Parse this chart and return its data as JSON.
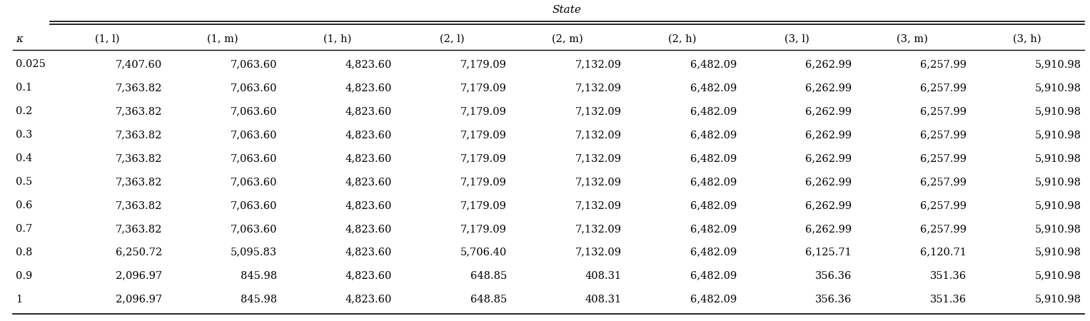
{
  "title": "State",
  "col_headers": [
    "κ",
    "(1, l)",
    "(1, m)",
    "(1, h)",
    "(2, l)",
    "(2, m)",
    "(2, h)",
    "(3, l)",
    "(3, m)",
    "(3, h)"
  ],
  "rows": [
    [
      "0.025",
      "7,407.60",
      "7,063.60",
      "4,823.60",
      "7,179.09",
      "7,132.09",
      "6,482.09",
      "6,262.99",
      "6,257.99",
      "5,910.98"
    ],
    [
      "0.1",
      "7,363.82",
      "7,063.60",
      "4,823.60",
      "7,179.09",
      "7,132.09",
      "6,482.09",
      "6,262.99",
      "6,257.99",
      "5,910.98"
    ],
    [
      "0.2",
      "7,363.82",
      "7,063.60",
      "4,823.60",
      "7,179.09",
      "7,132.09",
      "6,482.09",
      "6,262.99",
      "6,257.99",
      "5,910.98"
    ],
    [
      "0.3",
      "7,363.82",
      "7,063.60",
      "4,823.60",
      "7,179.09",
      "7,132.09",
      "6,482.09",
      "6,262.99",
      "6,257.99",
      "5,910.98"
    ],
    [
      "0.4",
      "7,363.82",
      "7,063.60",
      "4,823.60",
      "7,179.09",
      "7,132.09",
      "6,482.09",
      "6,262.99",
      "6,257.99",
      "5,910.98"
    ],
    [
      "0.5",
      "7,363.82",
      "7,063.60",
      "4,823.60",
      "7,179.09",
      "7,132.09",
      "6,482.09",
      "6,262.99",
      "6,257.99",
      "5,910.98"
    ],
    [
      "0.6",
      "7,363.82",
      "7,063.60",
      "4,823.60",
      "7,179.09",
      "7,132.09",
      "6,482.09",
      "6,262.99",
      "6,257.99",
      "5,910.98"
    ],
    [
      "0.7",
      "7,363.82",
      "7,063.60",
      "4,823.60",
      "7,179.09",
      "7,132.09",
      "6,482.09",
      "6,262.99",
      "6,257.99",
      "5,910.98"
    ],
    [
      "0.8",
      "6,250.72",
      "5,095.83",
      "4,823.60",
      "5,706.40",
      "7,132.09",
      "6,482.09",
      "6,125.71",
      "6,120.71",
      "5,910.98"
    ],
    [
      "0.9",
      "2,096.97",
      "845.98",
      "4,823.60",
      "648.85",
      "408.31",
      "6,482.09",
      "356.36",
      "351.36",
      "5,910.98"
    ],
    [
      "1",
      "2,096.97",
      "845.98",
      "4,823.60",
      "648.85",
      "408.31",
      "6,482.09",
      "356.36",
      "351.36",
      "5,910.98"
    ]
  ],
  "font_size": 10.5,
  "bg_color": "#ffffff",
  "text_color": "#000000",
  "fig_width": 15.27,
  "fig_height": 4.5,
  "dpi": 100
}
